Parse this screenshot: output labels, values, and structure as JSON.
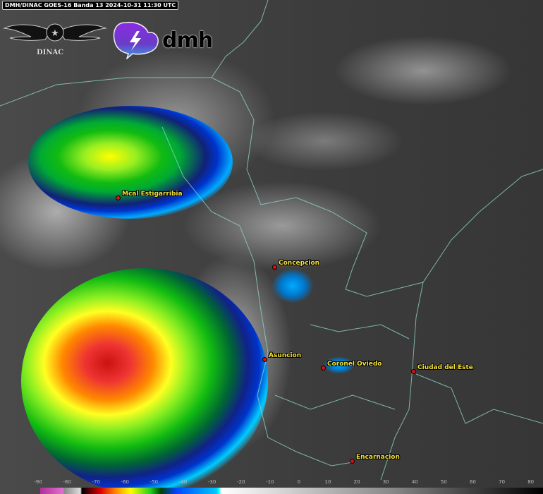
{
  "header": {
    "title": "DMH/DINAC GOES-16 Banda 13 2024-10-31 11:30 UTC"
  },
  "logos": {
    "dinac": "DINAC",
    "dmh": "dmh"
  },
  "cities": [
    {
      "name": "Mcal Estigarribia"
    },
    {
      "name": "Concepcion"
    },
    {
      "name": "Asuncion"
    },
    {
      "name": "Coronel Oviedo"
    },
    {
      "name": "Ciudad del Este"
    },
    {
      "name": "Encarnacion"
    }
  ],
  "colorbar": {
    "ticks": [
      "-90",
      "-80",
      "-70",
      "-60",
      "-50",
      "-40",
      "-30",
      "-20",
      "-10",
      "0",
      "10",
      "20",
      "30",
      "40",
      "50",
      "60",
      "70",
      "80"
    ]
  },
  "colors": {
    "city_label": "#f3e23a",
    "city_marker": "#e01010",
    "border": "#8fd3c8"
  }
}
